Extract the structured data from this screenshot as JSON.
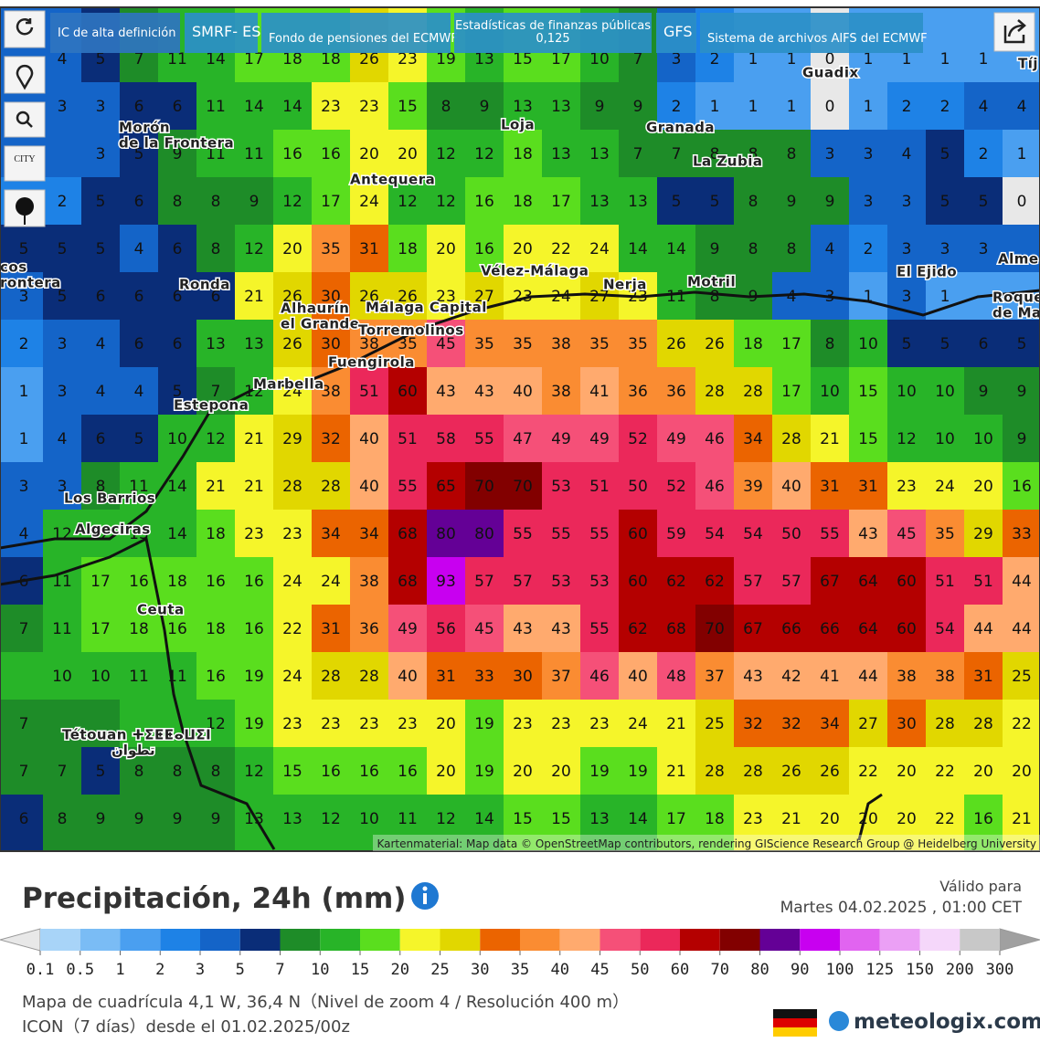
{
  "toolbar": {
    "city_label": "CITY"
  },
  "tabs": [
    {
      "lines": [
        "IC de alta definición"
      ]
    },
    {
      "lines": [
        "SMRF- ES"
      ]
    },
    {
      "lines": [
        "Fondo de pensiones del ECMWF"
      ]
    },
    {
      "lines": [
        "Estadísticas de finanzas públicas",
        "0,125"
      ]
    },
    {
      "lines": [
        "GFS"
      ]
    },
    {
      "lines": [
        "Sistema de archivos AIFS del ECMWF"
      ]
    }
  ],
  "grid": {
    "rows": [
      [
        null,
        4,
        5,
        7,
        11,
        14,
        17,
        18,
        18,
        26,
        23,
        19,
        13,
        15,
        17,
        10,
        7,
        3,
        2,
        1,
        1,
        0,
        1,
        1,
        1,
        1,
        null
      ],
      [
        null,
        3,
        3,
        6,
        6,
        11,
        14,
        14,
        23,
        23,
        15,
        8,
        9,
        13,
        13,
        9,
        9,
        2,
        1,
        1,
        1,
        0,
        1,
        2,
        2,
        4,
        4
      ],
      [
        null,
        null,
        3,
        5,
        9,
        11,
        11,
        16,
        16,
        20,
        20,
        12,
        12,
        18,
        13,
        13,
        7,
        7,
        8,
        8,
        8,
        3,
        3,
        4,
        5,
        2,
        1
      ],
      [
        null,
        2,
        5,
        6,
        8,
        8,
        9,
        12,
        17,
        24,
        12,
        12,
        16,
        18,
        17,
        13,
        13,
        5,
        5,
        8,
        9,
        9,
        3,
        3,
        5,
        5,
        0
      ],
      [
        5,
        5,
        5,
        4,
        6,
        8,
        12,
        20,
        35,
        31,
        18,
        20,
        16,
        20,
        22,
        24,
        14,
        14,
        9,
        8,
        8,
        4,
        2,
        3,
        3,
        3,
        null
      ],
      [
        3,
        5,
        6,
        6,
        6,
        6,
        21,
        26,
        30,
        26,
        26,
        23,
        27,
        23,
        24,
        27,
        23,
        11,
        8,
        9,
        4,
        3,
        1,
        3,
        1,
        null,
        null
      ],
      [
        2,
        3,
        4,
        6,
        6,
        13,
        13,
        26,
        30,
        38,
        35,
        45,
        35,
        35,
        38,
        35,
        35,
        26,
        26,
        18,
        17,
        8,
        10,
        5,
        5,
        6,
        5
      ],
      [
        1,
        3,
        4,
        4,
        5,
        7,
        12,
        24,
        38,
        51,
        60,
        43,
        43,
        40,
        38,
        41,
        36,
        36,
        28,
        28,
        17,
        10,
        15,
        10,
        10,
        9,
        9
      ],
      [
        1,
        4,
        6,
        5,
        10,
        12,
        21,
        29,
        32,
        40,
        51,
        58,
        55,
        47,
        49,
        49,
        52,
        49,
        46,
        34,
        28,
        21,
        15,
        12,
        10,
        10,
        9
      ],
      [
        3,
        3,
        8,
        11,
        14,
        21,
        21,
        28,
        28,
        40,
        55,
        65,
        70,
        70,
        53,
        51,
        50,
        52,
        46,
        39,
        40,
        31,
        31,
        23,
        24,
        20,
        16
      ],
      [
        4,
        12,
        12,
        13,
        14,
        18,
        23,
        23,
        34,
        34,
        68,
        80,
        80,
        55,
        55,
        55,
        60,
        59,
        54,
        54,
        50,
        55,
        43,
        45,
        35,
        29,
        33
      ],
      [
        6,
        11,
        17,
        16,
        18,
        16,
        16,
        24,
        24,
        38,
        68,
        93,
        57,
        57,
        53,
        53,
        60,
        62,
        62,
        57,
        57,
        67,
        64,
        60,
        51,
        51,
        44
      ],
      [
        7,
        11,
        17,
        18,
        16,
        18,
        16,
        22,
        31,
        36,
        49,
        56,
        45,
        43,
        43,
        55,
        62,
        68,
        70,
        67,
        66,
        66,
        64,
        60,
        54,
        44,
        44
      ],
      [
        null,
        10,
        10,
        11,
        11,
        16,
        19,
        24,
        28,
        28,
        40,
        31,
        33,
        30,
        37,
        46,
        40,
        48,
        37,
        43,
        42,
        41,
        44,
        38,
        38,
        31,
        25
      ],
      [
        7,
        null,
        null,
        null,
        null,
        12,
        19,
        23,
        23,
        23,
        23,
        20,
        19,
        23,
        23,
        23,
        24,
        21,
        25,
        32,
        32,
        34,
        27,
        30,
        28,
        28,
        22
      ],
      [
        7,
        7,
        5,
        8,
        8,
        8,
        12,
        15,
        16,
        16,
        16,
        20,
        19,
        20,
        20,
        19,
        19,
        21,
        28,
        28,
        26,
        26,
        22,
        20,
        22,
        20,
        20
      ],
      [
        6,
        8,
        9,
        9,
        9,
        9,
        13,
        13,
        12,
        10,
        11,
        12,
        14,
        15,
        15,
        13,
        14,
        17,
        18,
        23,
        21,
        20,
        20,
        20,
        22,
        16,
        21
      ]
    ]
  },
  "places": [
    {
      "lines": [
        "Guadix"
      ]
    },
    {
      "lines": [
        "Loja"
      ]
    },
    {
      "lines": [
        "Granada"
      ]
    },
    {
      "lines": [
        "La Zubia"
      ]
    },
    {
      "lines": [
        "Morón",
        "de la Frontera"
      ]
    },
    {
      "lines": [
        "Antequera"
      ]
    },
    {
      "lines": [
        "Vélez-Málaga"
      ]
    },
    {
      "lines": [
        "Nerja"
      ]
    },
    {
      "lines": [
        "Motril"
      ]
    },
    {
      "lines": [
        "El Ejido"
      ]
    },
    {
      "lines": [
        "Ronda"
      ]
    },
    {
      "lines": [
        "Alhaurín",
        "el Grande"
      ]
    },
    {
      "lines": [
        "Málaga Capital"
      ]
    },
    {
      "lines": [
        "Torremolinos"
      ]
    },
    {
      "lines": [
        "Fuengirola"
      ]
    },
    {
      "lines": [
        "Marbella"
      ]
    },
    {
      "lines": [
        "Estepona"
      ]
    },
    {
      "lines": [
        "Los Barrios"
      ]
    },
    {
      "lines": [
        "Algeciras"
      ]
    },
    {
      "lines": [
        "Ceuta"
      ]
    },
    {
      "lines": [
        "Tétouan ⵜⵉⵟⵟⴰⵡⵉⵏ",
        "تطوان"
      ]
    },
    {
      "lines": [
        "Alme"
      ]
    },
    {
      "lines": [
        "Roque",
        "de Ma"
      ]
    },
    {
      "lines": [
        "Tíj"
      ]
    },
    {
      "lines": [
        "cos",
        "rontera"
      ]
    }
  ],
  "attribution": "Kartenmaterial: Map data © OpenStreetMap contributors, rendering GIScience Research Group @ Heidelberg University",
  "title": "Precipitación, 24h (mm)",
  "valid_label": "Válido para",
  "valid_time": "Martes 04.02.2025 ,  01:00 CET",
  "legend": {
    "ticks": [
      0.1,
      0.5,
      1,
      2,
      3,
      5,
      7,
      10,
      15,
      20,
      25,
      30,
      35,
      40,
      45,
      50,
      60,
      70,
      80,
      90,
      100,
      125,
      150,
      200,
      300
    ],
    "colors": [
      "#a8d4f8",
      "#7abcf5",
      "#4a9ff0",
      "#1e82e6",
      "#1464c8",
      "#0a2d78",
      "#1e8c28",
      "#28b428",
      "#5ade1e",
      "#f5f52a",
      "#e1d700",
      "#eb6400",
      "#fa8c32",
      "#ffaa6e",
      "#f55078",
      "#eb285a",
      "#b40000",
      "#820000",
      "#640096",
      "#c800f0",
      "#e164f0",
      "#eba0f5",
      "#f5d7fa",
      "#c8c8c8"
    ],
    "below_color": "#e8e8e8",
    "above_color": "#a0a0a0"
  },
  "footer": {
    "grid_info": "Mapa de cuadrícula 4,1 W, 36,4 N（Nivel de zoom 4 / Resolución 400 m）",
    "model_info": "ICON（7 días）desde el 01.02.2025/00z",
    "brand": "meteologix.com"
  }
}
